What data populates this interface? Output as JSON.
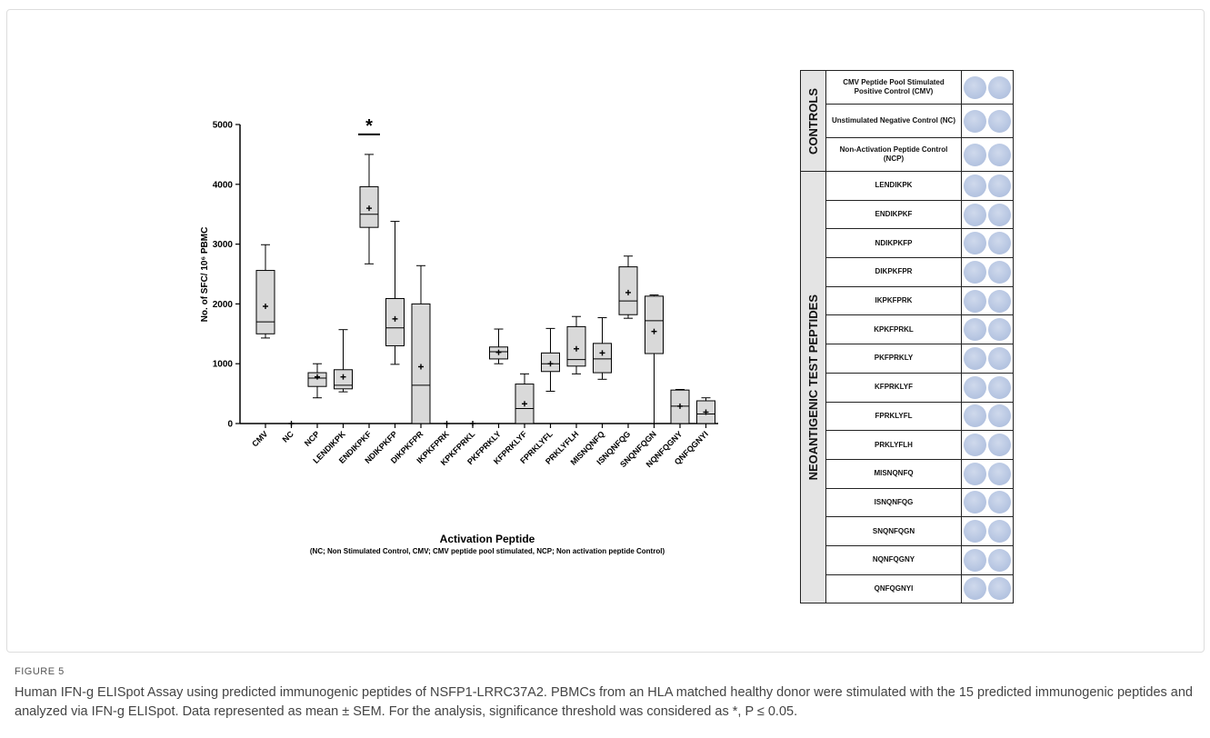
{
  "chart_data": {
    "type": "box",
    "x_label": "Activation Peptide",
    "x_sublabel": "(NC; Non Stimulated Control, CMV; CMV peptide pool stimulated, NCP; Non activation peptide Control)",
    "y_label": "No. of SFC/ 10⁶ PBMC",
    "annotation": "*",
    "categories": [
      "CMV",
      "NC",
      "NCP",
      "LENDIKPK",
      "ENDIKPKF",
      "NDIKPKFP",
      "DIKPKFPR",
      "IKPKFPRK",
      "KPKFPRKL",
      "PKFPRKLY",
      "KFPRKLYF",
      "FPRKLYFL",
      "PRKLYFLH",
      "MISNQNFQ",
      "ISNQNFQG",
      "SNQNFQGN",
      "NQNFQGNY",
      "QNFQGNYI"
    ],
    "boxes": [
      {
        "min": 1430,
        "q1": 1500,
        "median": 1700,
        "q3": 2560,
        "max": 2990,
        "mean": 1960
      },
      {
        "min": 0,
        "q1": 0,
        "median": 0,
        "q3": 0,
        "max": 0,
        "mean": 0
      },
      {
        "min": 430,
        "q1": 620,
        "median": 760,
        "q3": 850,
        "max": 1000,
        "mean": 780
      },
      {
        "min": 530,
        "q1": 580,
        "median": 640,
        "q3": 900,
        "max": 1570,
        "mean": 780
      },
      {
        "min": 2670,
        "q1": 3280,
        "median": 3500,
        "q3": 3960,
        "max": 4500,
        "mean": 3600
      },
      {
        "min": 990,
        "q1": 1300,
        "median": 1600,
        "q3": 2090,
        "max": 3380,
        "mean": 1750
      },
      {
        "min": 0,
        "q1": 0,
        "median": 640,
        "q3": 2000,
        "max": 2640,
        "mean": 950
      },
      {
        "min": 0,
        "q1": 0,
        "median": 0,
        "q3": 0,
        "max": 0,
        "mean": 0
      },
      {
        "min": 0,
        "q1": 0,
        "median": 0,
        "q3": 0,
        "max": 0,
        "mean": 0
      },
      {
        "min": 1000,
        "q1": 1080,
        "median": 1200,
        "q3": 1280,
        "max": 1580,
        "mean": 1190
      },
      {
        "min": 0,
        "q1": 0,
        "median": 250,
        "q3": 660,
        "max": 830,
        "mean": 330
      },
      {
        "min": 540,
        "q1": 870,
        "median": 1000,
        "q3": 1180,
        "max": 1590,
        "mean": 1000
      },
      {
        "min": 830,
        "q1": 960,
        "median": 1070,
        "q3": 1620,
        "max": 1790,
        "mean": 1250
      },
      {
        "min": 740,
        "q1": 850,
        "median": 1080,
        "q3": 1340,
        "max": 1770,
        "mean": 1180
      },
      {
        "min": 1760,
        "q1": 1820,
        "median": 2050,
        "q3": 2620,
        "max": 2800,
        "mean": 2190
      },
      {
        "min": 0,
        "q1": 1170,
        "median": 1720,
        "q3": 2130,
        "max": 2150,
        "mean": 1540
      },
      {
        "min": 0,
        "q1": 0,
        "median": 290,
        "q3": 560,
        "max": 570,
        "mean": 290
      },
      {
        "min": 0,
        "q1": 0,
        "median": 160,
        "q3": 380,
        "max": 430,
        "mean": 190
      }
    ],
    "color": "#d9d9d9",
    "ylim": [
      0,
      5000
    ],
    "yticks": [
      0,
      1000,
      2000,
      3000,
      4000,
      5000
    ]
  },
  "panel": {
    "groups": [
      {
        "label": "CONTROLS",
        "rows": [
          "CMV Peptide Pool Stimulated Positive Control (CMV)",
          "Unstimulated Negative Control (NC)",
          "Non-Activation Peptide Control (NCP)"
        ]
      },
      {
        "label": "NEOANTIGENIC TEST PEPTIDES",
        "rows": [
          "LENDIKPK",
          "ENDIKPKF",
          "NDIKPKFP",
          "DIKPKFPR",
          "IKPKFPRK",
          "KPKFPRKL",
          "PKFPRKLY",
          "KFPRKLYF",
          "FPRKLYFL",
          "PRKLYFLH",
          "MISNQNFQ",
          "ISNQNFQG",
          "SNQNFQGN",
          "NQNFQGNY",
          "QNFQGNYI"
        ]
      }
    ]
  },
  "caption": {
    "label": "FIGURE 5",
    "text": "Human IFN-g ELISpot Assay using predicted immunogenic peptides of NSFP1-LRRC37A2. PBMCs from an HLA matched healthy donor were stimulated with the 15 predicted immunogenic peptides and analyzed via IFN-g ELISpot. Data represented as mean ± SEM. For the analysis, significance threshold was considered as *, P ≤ 0.05."
  }
}
